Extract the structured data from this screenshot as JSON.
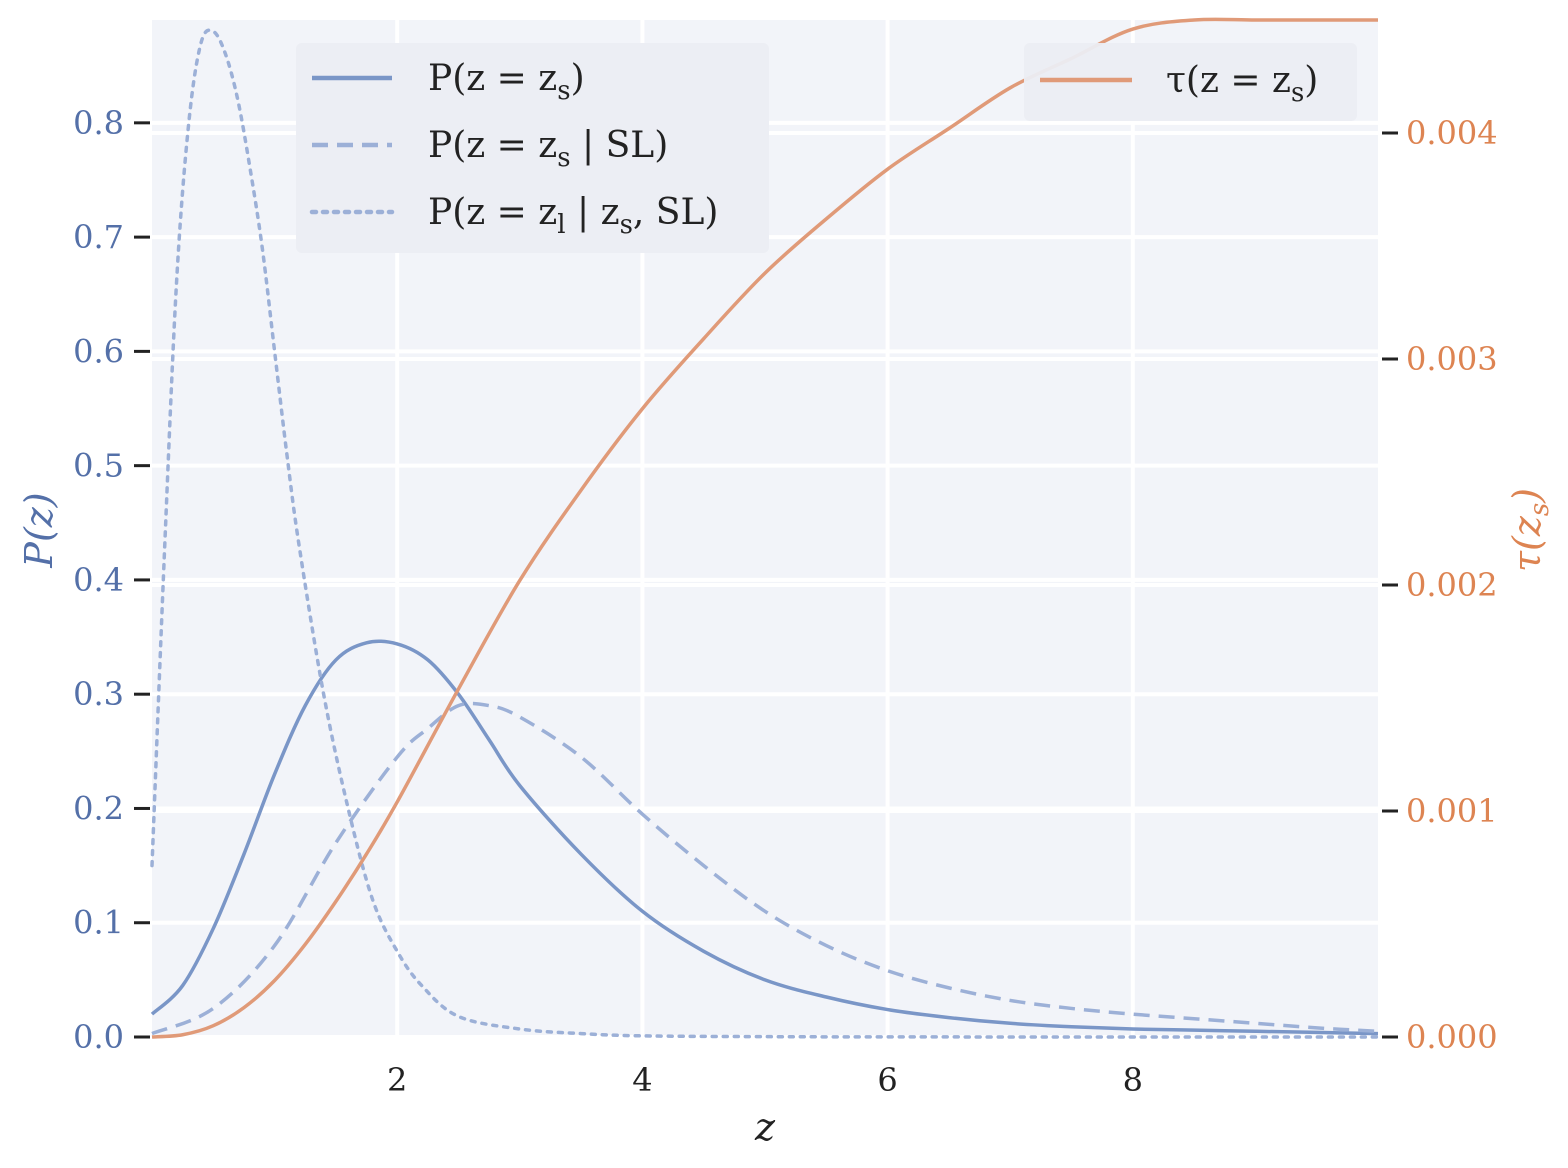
{
  "colors": {
    "background": "#f2f4f9",
    "grid": "#ffffff",
    "left_axis": "#5470a8",
    "right_axis": "#dd8452",
    "series_blue": "#7a96c7",
    "series_blue_light": "#9cb0d7",
    "series_orange": "#e09a78",
    "tick_dark": "#222222"
  },
  "chart_data": {
    "type": "line",
    "xlabel": "z",
    "ylabel_left": "P(z)",
    "ylabel_right": "τ(z_s)",
    "xlim": [
      0,
      10
    ],
    "ylim_left": [
      0,
      0.89
    ],
    "ylim_right": [
      0,
      0.0045
    ],
    "x_ticks": [
      2,
      4,
      6,
      8
    ],
    "y_left_ticks": [
      0.0,
      0.1,
      0.2,
      0.3,
      0.4,
      0.5,
      0.6,
      0.7,
      0.8
    ],
    "y_right_ticks": [
      0.0,
      0.001,
      0.002,
      0.003,
      0.004
    ],
    "x_tick_labels": [
      "2",
      "4",
      "6",
      "8"
    ],
    "y_left_tick_labels": [
      "0.0",
      "0.1",
      "0.2",
      "0.3",
      "0.4",
      "0.5",
      "0.6",
      "0.7",
      "0.8"
    ],
    "y_right_tick_labels": [
      "0.000",
      "0.001",
      "0.002",
      "0.003",
      "0.004"
    ],
    "grid": true,
    "legends": [
      {
        "placement": "top-center",
        "entries": [
          "series_p",
          "series_p_sl",
          "series_pl"
        ]
      },
      {
        "placement": "top-right",
        "entries": [
          "series_tau"
        ]
      }
    ],
    "series": [
      {
        "id": "series_p",
        "axis": "left",
        "style": "solid",
        "color": "#7a96c7",
        "legend": {
          "base": "P(z = z",
          "sub": "s",
          "tail": ")"
        },
        "x": [
          0.0,
          0.25,
          0.5,
          0.75,
          1.0,
          1.25,
          1.5,
          1.75,
          2.0,
          2.25,
          2.5,
          2.75,
          3.0,
          3.5,
          4.0,
          4.5,
          5.0,
          5.5,
          6.0,
          6.5,
          7.0,
          7.5,
          8.0,
          8.5,
          9.0,
          9.5,
          10.0
        ],
        "y": [
          0.02,
          0.045,
          0.095,
          0.16,
          0.23,
          0.29,
          0.33,
          0.345,
          0.344,
          0.33,
          0.3,
          0.26,
          0.22,
          0.16,
          0.11,
          0.075,
          0.05,
          0.035,
          0.024,
          0.017,
          0.012,
          0.009,
          0.007,
          0.006,
          0.005,
          0.004,
          0.003
        ]
      },
      {
        "id": "series_p_sl",
        "axis": "left",
        "style": "dashed",
        "color": "#9cb0d7",
        "legend": {
          "base": "P(z = z",
          "sub": "s",
          "tail": " | SL)"
        },
        "x": [
          0.0,
          0.5,
          1.0,
          1.5,
          2.0,
          2.25,
          2.5,
          2.75,
          3.0,
          3.5,
          4.0,
          4.5,
          5.0,
          5.5,
          6.0,
          6.5,
          7.0,
          7.5,
          8.0,
          8.5,
          9.0,
          9.5,
          10.0
        ],
        "y": [
          0.003,
          0.025,
          0.08,
          0.17,
          0.245,
          0.27,
          0.29,
          0.29,
          0.28,
          0.245,
          0.195,
          0.15,
          0.11,
          0.08,
          0.058,
          0.043,
          0.032,
          0.025,
          0.02,
          0.016,
          0.012,
          0.008,
          0.005
        ]
      },
      {
        "id": "series_pl",
        "axis": "left",
        "style": "dotted",
        "color": "#9cb0d7",
        "legend": {
          "base": "P(z = z",
          "sub": "l",
          "tail": " | z",
          "sub2": "s",
          "tail2": ", SL)"
        },
        "x": [
          0.0,
          0.1,
          0.2,
          0.3,
          0.4,
          0.5,
          0.6,
          0.7,
          0.8,
          0.9,
          1.0,
          1.1,
          1.2,
          1.4,
          1.6,
          1.8,
          2.0,
          2.2,
          2.5,
          3.0,
          3.5,
          4.0,
          5.0,
          6.0,
          8.0,
          10.0
        ],
        "y": [
          0.15,
          0.42,
          0.66,
          0.8,
          0.87,
          0.88,
          0.86,
          0.82,
          0.76,
          0.69,
          0.6,
          0.51,
          0.43,
          0.3,
          0.2,
          0.12,
          0.075,
          0.045,
          0.018,
          0.007,
          0.003,
          0.001,
          0.0003,
          0.0001,
          0.0,
          0.0
        ]
      },
      {
        "id": "series_tau",
        "axis": "right",
        "style": "solid",
        "color": "#e09a78",
        "legend": {
          "base": "τ(z = z",
          "sub": "s",
          "tail": ")"
        },
        "x": [
          0.0,
          0.25,
          0.5,
          0.75,
          1.0,
          1.25,
          1.5,
          1.75,
          2.0,
          2.5,
          3.0,
          3.5,
          4.0,
          4.5,
          5.0,
          5.5,
          6.0,
          6.5,
          7.0,
          7.5,
          8.0,
          8.5,
          9.0,
          9.5,
          10.0
        ],
        "y": [
          0.0,
          1e-05,
          5e-05,
          0.00013,
          0.00025,
          0.00041,
          0.0006,
          0.00081,
          0.00104,
          0.00154,
          0.00202,
          0.00242,
          0.00278,
          0.00309,
          0.00338,
          0.00362,
          0.00384,
          0.00402,
          0.0042,
          0.00433,
          0.00446,
          0.00459,
          0.0047,
          0.00481,
          0.00492
        ]
      }
    ]
  }
}
